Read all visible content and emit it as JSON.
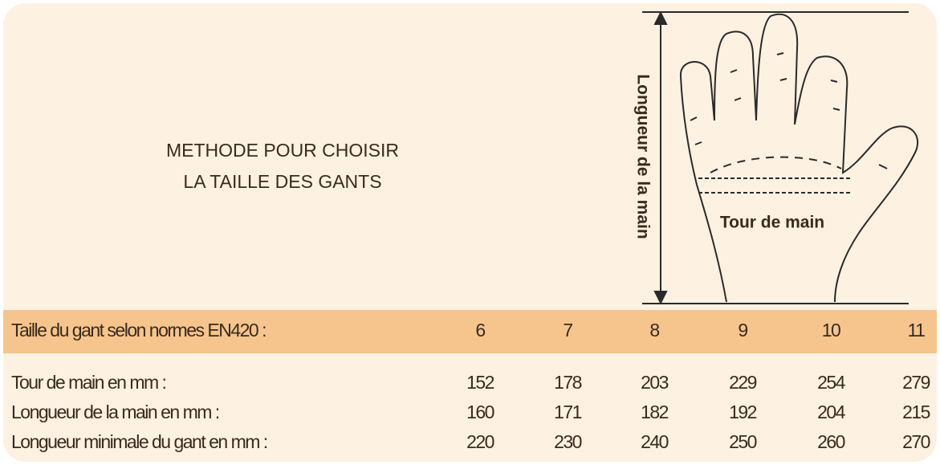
{
  "title": [
    "METHODE POUR CHOISIR",
    "LA TAILLE DES GANTS"
  ],
  "diagram": {
    "length_label": "Longueur de la main",
    "girth_label": "Tour de main"
  },
  "table": {
    "header": {
      "label": "Taille du gant selon normes EN420 :",
      "values": [
        6,
        7,
        8,
        9,
        10,
        11
      ]
    },
    "rows": [
      {
        "label": "Tour de main en mm :",
        "values": [
          152,
          178,
          203,
          229,
          254,
          279
        ]
      },
      {
        "label": "Longueur de la main en mm :",
        "values": [
          160,
          171,
          182,
          192,
          204,
          215
        ]
      },
      {
        "label": "Longueur minimale du gant en mm :",
        "values": [
          220,
          230,
          240,
          250,
          260,
          270
        ]
      }
    ]
  }
}
